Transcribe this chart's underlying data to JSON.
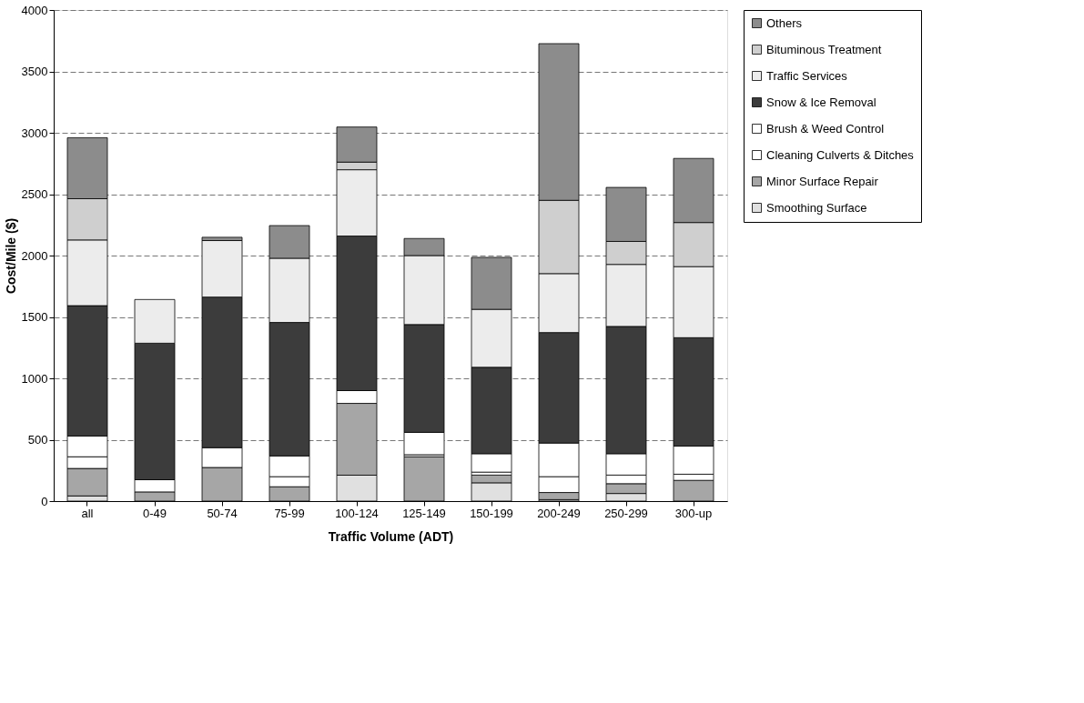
{
  "chart_data": {
    "type": "bar",
    "stacked": true,
    "xlabel": "Traffic Volume (ADT)",
    "ylabel": "Cost/Mile ($)",
    "categories": [
      "all",
      "0-49",
      "50-74",
      "75-99",
      "100-124",
      "125-149",
      "150-199",
      "200-249",
      "250-299",
      "300-up"
    ],
    "series": [
      {
        "name": "Smoothing Surface",
        "color": "#e0e0e0",
        "values": [
          42,
          0,
          0,
          0,
          211,
          0,
          149,
          12,
          62,
          0
        ]
      },
      {
        "name": "Minor Surface Repair",
        "color": "#a6a6a6",
        "values": [
          224,
          75,
          274,
          117,
          585,
          361,
          63,
          58,
          80,
          169
        ]
      },
      {
        "name": "Cleaning Culverts & Ditches",
        "color": "#ffffff",
        "values": [
          95,
          0,
          0,
          82,
          0,
          17,
          24,
          129,
          70,
          50
        ]
      },
      {
        "name": "Brush & Weed Control",
        "color": "#ffffff",
        "values": [
          169,
          99,
          161,
          169,
          104,
          182,
          150,
          274,
          174,
          229
        ]
      },
      {
        "name": "Snow & Ice Removal",
        "color": "#3c3c3c",
        "values": [
          1062,
          1112,
          1227,
          1087,
          1259,
          878,
          704,
          900,
          1037,
          883
        ]
      },
      {
        "name": "Traffic Services",
        "color": "#ececec",
        "values": [
          535,
          356,
          460,
          523,
          540,
          562,
          472,
          480,
          505,
          579
        ]
      },
      {
        "name": "Bituminous Treatment",
        "color": "#cfcfcf",
        "values": [
          336,
          0,
          0,
          0,
          62,
          0,
          0,
          597,
          187,
          359
        ]
      },
      {
        "name": "Others",
        "color": "#8c8c8c",
        "values": [
          497,
          0,
          27,
          266,
          286,
          139,
          423,
          1276,
          440,
          522
        ]
      }
    ],
    "ylim": [
      0,
      4000
    ],
    "yticks": [
      0,
      500,
      1000,
      1500,
      2000,
      2500,
      3000,
      3500,
      4000
    ],
    "grid": "y",
    "legend": "right"
  }
}
